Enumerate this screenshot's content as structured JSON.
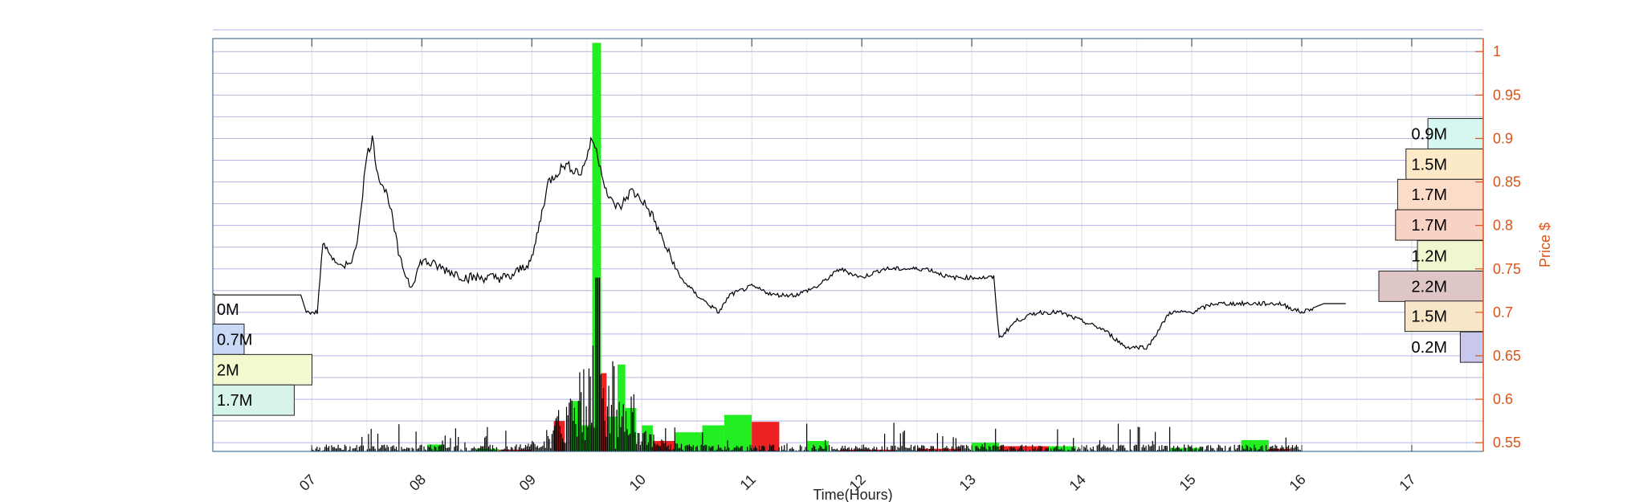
{
  "chart_data": {
    "type": "line",
    "title": "",
    "xlabel": "Time(Hours)",
    "ylabel": "Price $",
    "x_unit": "hours",
    "xlim": [
      6.1,
      17.65
    ],
    "ylim": [
      0.54,
      1.015
    ],
    "x_ticks": [
      7,
      8,
      9,
      10,
      11,
      12,
      13,
      14,
      15,
      16,
      17
    ],
    "x_tick_labels": [
      "07",
      "08",
      "09",
      "10",
      "11",
      "12",
      "13",
      "14",
      "15",
      "16",
      "17"
    ],
    "y_ticks": [
      0.55,
      0.6,
      0.65,
      0.7,
      0.75,
      0.8,
      0.85,
      0.9,
      0.95,
      1
    ],
    "y_tick_labels": [
      "0.55",
      "0.6",
      "0.65",
      "0.7",
      "0.75",
      "0.8",
      "0.85",
      "0.9",
      "0.95",
      "1"
    ],
    "grid": true,
    "price_series": {
      "x": [
        6.1,
        6.9,
        6.95,
        7.05,
        7.1,
        7.2,
        7.3,
        7.4,
        7.5,
        7.55,
        7.6,
        7.7,
        7.8,
        7.9,
        8.0,
        8.2,
        8.4,
        8.6,
        8.8,
        9.0,
        9.15,
        9.3,
        9.45,
        9.55,
        9.6,
        9.7,
        9.8,
        9.9,
        10.0,
        10.1,
        10.2,
        10.35,
        10.5,
        10.7,
        10.8,
        11.0,
        11.2,
        11.4,
        11.6,
        11.8,
        12.0,
        12.2,
        12.4,
        12.6,
        12.8,
        13.0,
        13.2,
        13.25,
        13.4,
        13.6,
        13.8,
        14.0,
        14.2,
        14.4,
        14.6,
        14.8,
        15.0,
        15.2,
        15.4,
        15.6,
        15.8,
        16.0,
        16.2,
        16.4
      ],
      "y": [
        0.72,
        0.72,
        0.7,
        0.7,
        0.78,
        0.76,
        0.75,
        0.77,
        0.88,
        0.9,
        0.86,
        0.83,
        0.76,
        0.73,
        0.76,
        0.75,
        0.74,
        0.74,
        0.74,
        0.76,
        0.85,
        0.87,
        0.86,
        0.9,
        0.88,
        0.83,
        0.82,
        0.84,
        0.83,
        0.81,
        0.78,
        0.74,
        0.72,
        0.7,
        0.72,
        0.73,
        0.72,
        0.72,
        0.73,
        0.75,
        0.74,
        0.75,
        0.75,
        0.75,
        0.74,
        0.74,
        0.74,
        0.67,
        0.69,
        0.7,
        0.7,
        0.69,
        0.68,
        0.66,
        0.66,
        0.7,
        0.7,
        0.71,
        0.71,
        0.71,
        0.71,
        0.7,
        0.71,
        0.71
      ]
    },
    "volume_bars": [
      {
        "x0": 8.05,
        "x1": 8.2,
        "value": 0.008,
        "color": "#22ee22"
      },
      {
        "x0": 8.5,
        "x1": 8.7,
        "value": 0.003,
        "color": "#22ee22"
      },
      {
        "x0": 8.7,
        "x1": 9.0,
        "value": -0.001,
        "color": "#ee2222"
      },
      {
        "x0": 9.2,
        "x1": 9.3,
        "value": 0.035,
        "color": "#ee2222"
      },
      {
        "x0": 9.35,
        "x1": 9.45,
        "value": 0.058,
        "color": "#22ee22"
      },
      {
        "x0": 9.45,
        "x1": 9.55,
        "value": 0.03,
        "color": "#22ee22"
      },
      {
        "x0": 9.55,
        "x1": 9.63,
        "value": 0.47,
        "color": "#22ee22"
      },
      {
        "x0": 9.63,
        "x1": 9.68,
        "value": 0.09,
        "color": "#ee2222"
      },
      {
        "x0": 9.68,
        "x1": 9.78,
        "value": 0.04,
        "color": "#22ee22"
      },
      {
        "x0": 9.78,
        "x1": 9.85,
        "value": 0.1,
        "color": "#22ee22"
      },
      {
        "x0": 9.85,
        "x1": 9.95,
        "value": 0.05,
        "color": "#22ee22"
      },
      {
        "x0": 10.0,
        "x1": 10.1,
        "value": 0.03,
        "color": "#22ee22"
      },
      {
        "x0": 10.1,
        "x1": 10.3,
        "value": 0.012,
        "color": "#ee2222"
      },
      {
        "x0": 10.3,
        "x1": 10.55,
        "value": 0.022,
        "color": "#22ee22"
      },
      {
        "x0": 10.55,
        "x1": 10.75,
        "value": 0.03,
        "color": "#22ee22"
      },
      {
        "x0": 10.75,
        "x1": 11.0,
        "value": 0.042,
        "color": "#22ee22"
      },
      {
        "x0": 11.0,
        "x1": 11.25,
        "value": 0.034,
        "color": "#ee2222"
      },
      {
        "x0": 11.5,
        "x1": 11.7,
        "value": 0.012,
        "color": "#22ee22"
      },
      {
        "x0": 11.8,
        "x1": 12.3,
        "value": -0.002,
        "color": "#ee2222"
      },
      {
        "x0": 12.5,
        "x1": 12.9,
        "value": 0.003,
        "color": "#ee2222"
      },
      {
        "x0": 13.0,
        "x1": 13.25,
        "value": 0.01,
        "color": "#22ee22"
      },
      {
        "x0": 13.25,
        "x1": 13.7,
        "value": 0.006,
        "color": "#ee2222"
      },
      {
        "x0": 13.7,
        "x1": 13.95,
        "value": 0.006,
        "color": "#22ee22"
      },
      {
        "x0": 14.8,
        "x1": 15.1,
        "value": 0.004,
        "color": "#22ee22"
      },
      {
        "x0": 15.45,
        "x1": 15.7,
        "value": 0.013,
        "color": "#22ee22"
      },
      {
        "x0": 15.7,
        "x1": 15.9,
        "value": 0.003,
        "color": "#ee2222"
      }
    ],
    "volume_profile_left": [
      {
        "label": "0M",
        "y_center": 0.7035,
        "fraction": 0.0,
        "color": "#ffffff"
      },
      {
        "label": "0.7M",
        "y_center": 0.669,
        "fraction": 0.3,
        "color": "#c9d8f5"
      },
      {
        "label": "2M",
        "y_center": 0.634,
        "fraction": 0.95,
        "color": "#f4f8cf"
      },
      {
        "label": "1.7M",
        "y_center": 0.599,
        "fraction": 0.78,
        "color": "#d6f5e8"
      }
    ],
    "volume_profile_right": [
      {
        "label": "0.9M",
        "y_center": 0.9055,
        "fraction": 0.53,
        "color": "#d6f7ef"
      },
      {
        "label": "1.5M",
        "y_center": 0.8705,
        "fraction": 0.74,
        "color": "#fbe9c8"
      },
      {
        "label": "1.7M",
        "y_center": 0.8355,
        "fraction": 0.82,
        "color": "#fbdcc8"
      },
      {
        "label": "1.7M",
        "y_center": 0.8005,
        "fraction": 0.84,
        "color": "#f8d2c4"
      },
      {
        "label": "1.2M",
        "y_center": 0.765,
        "fraction": 0.63,
        "color": "#eef7cf"
      },
      {
        "label": "2.2M",
        "y_center": 0.73,
        "fraction": 1.0,
        "color": "#dfc6c6"
      },
      {
        "label": "1.5M",
        "y_center": 0.6955,
        "fraction": 0.75,
        "color": "#f8e6c8"
      },
      {
        "label": "0.2M",
        "y_center": 0.66,
        "fraction": 0.22,
        "color": "#c8c8ee"
      }
    ],
    "colors": {
      "axis_right": "#d9541a",
      "grid_h": "#b3b3e6",
      "grid_v": "#dddddd",
      "price_line": "#000000",
      "volume_line": "#000000"
    }
  }
}
